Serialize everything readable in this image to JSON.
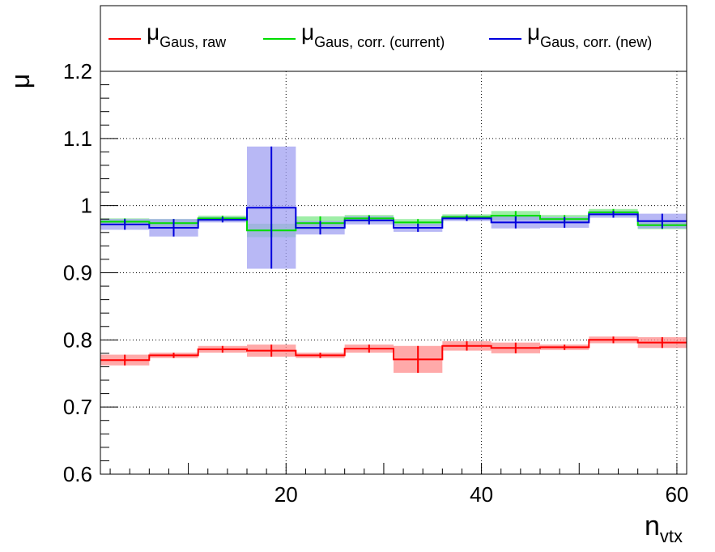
{
  "chart_data": {
    "type": "step",
    "xlim": [
      1,
      61
    ],
    "ylim": [
      0.6,
      1.2
    ],
    "x_ticks": [
      20,
      40,
      60
    ],
    "y_ticks": [
      0.6,
      0.7,
      0.8,
      0.9,
      1.0,
      1.1,
      1.2
    ],
    "x_tick_labels": [
      "20",
      "40",
      "60"
    ],
    "y_tick_labels": [
      "0.6",
      "0.7",
      "0.8",
      "0.9",
      "1",
      "1.1",
      "1.2"
    ],
    "grid": true,
    "xlabel": {
      "main": "n",
      "sub": "vtx"
    },
    "ylabel": "μ",
    "legend_position": "top",
    "bins": [
      [
        1,
        6
      ],
      [
        6,
        11
      ],
      [
        11,
        16
      ],
      [
        16,
        21
      ],
      [
        21,
        26
      ],
      [
        26,
        31
      ],
      [
        31,
        36
      ],
      [
        36,
        41
      ],
      [
        41,
        46
      ],
      [
        46,
        51
      ],
      [
        51,
        56
      ],
      [
        56,
        61
      ]
    ],
    "series": [
      {
        "legend_main": "μ",
        "legend_sub": "Gaus, raw",
        "color": "#ff0000",
        "band_color": "#ff8c8c",
        "values": [
          0.77,
          0.777,
          0.786,
          0.784,
          0.777,
          0.787,
          0.771,
          0.791,
          0.788,
          0.789,
          0.8,
          0.796
        ],
        "errors": [
          0.008,
          0.004,
          0.005,
          0.009,
          0.004,
          0.006,
          0.02,
          0.007,
          0.008,
          0.004,
          0.005,
          0.008
        ]
      },
      {
        "legend_main": "μ",
        "legend_sub": "Gaus, corr. (current)",
        "color": "#00dd00",
        "band_color": "#7fe88a",
        "values": [
          0.976,
          0.974,
          0.981,
          0.963,
          0.974,
          0.981,
          0.975,
          0.983,
          0.985,
          0.98,
          0.99,
          0.971
        ],
        "errors": [
          0.005,
          0.006,
          0.004,
          0.01,
          0.01,
          0.005,
          0.005,
          0.004,
          0.007,
          0.006,
          0.005,
          0.006
        ]
      },
      {
        "legend_main": "μ",
        "legend_sub": "Gaus, corr. (new)",
        "color": "#0000dd",
        "band_color": "#a0a0f2",
        "values": [
          0.972,
          0.967,
          0.979,
          0.997,
          0.967,
          0.978,
          0.967,
          0.981,
          0.975,
          0.975,
          0.987,
          0.977
        ],
        "errors": [
          0.008,
          0.013,
          0.004,
          0.091,
          0.01,
          0.006,
          0.006,
          0.004,
          0.009,
          0.008,
          0.005,
          0.011
        ]
      }
    ]
  }
}
